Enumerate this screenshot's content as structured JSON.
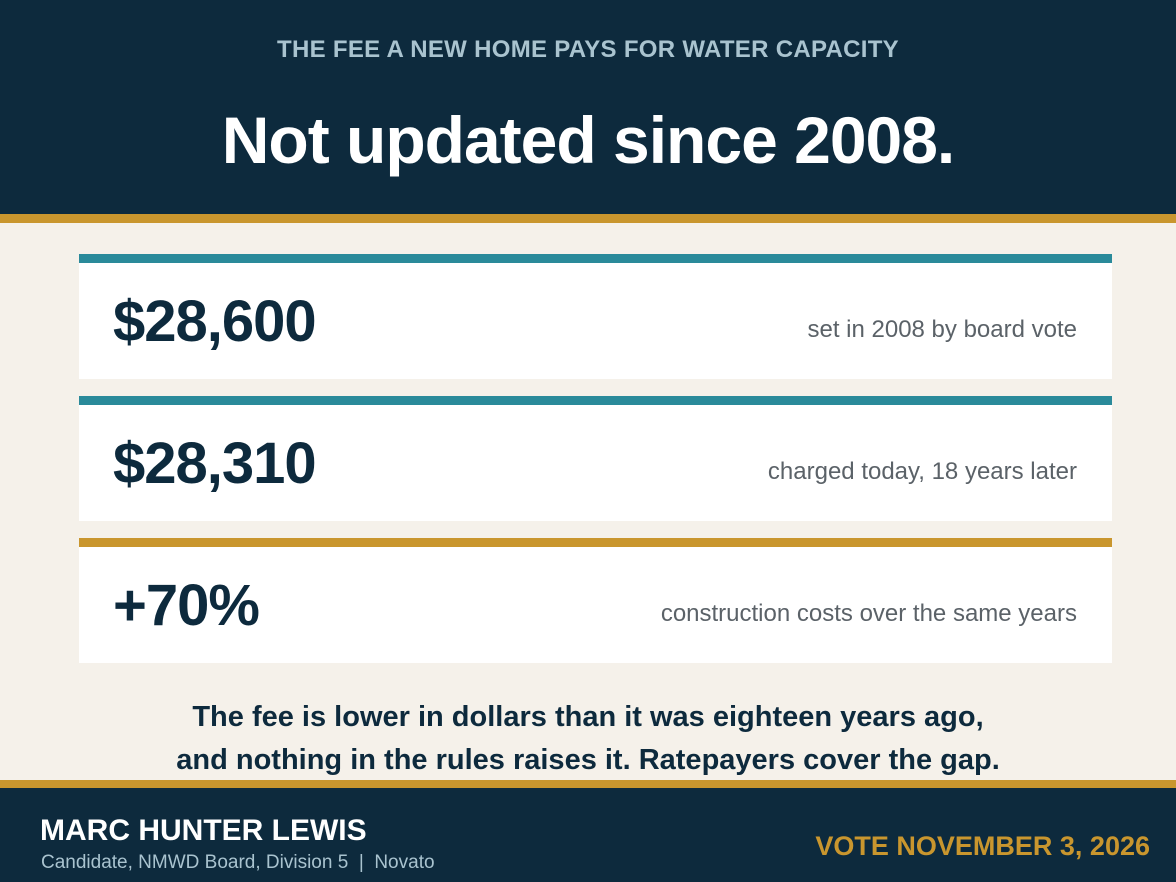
{
  "header": {
    "kicker": "THE FEE A NEW HOME PAYS FOR WATER CAPACITY",
    "headline": "Not updated since 2008."
  },
  "cards": [
    {
      "value": "$28,600",
      "description": "set in 2008 by board vote",
      "accent": "#2a8a9a"
    },
    {
      "value": "$28,310",
      "description": "charged today, 18 years later",
      "accent": "#2a8a9a"
    },
    {
      "value": "+70%",
      "description": "construction costs over the same years",
      "accent": "#c9962e"
    }
  ],
  "summary": {
    "line1": "The fee is lower in dollars than it was eighteen years ago,",
    "line2": "and nothing in the rules raises it. Ratepayers cover the gap."
  },
  "footer": {
    "name": "MARC HUNTER LEWIS",
    "role": "Candidate, NMWD Board, Division 5  |  Novato",
    "vote": "VOTE NOVEMBER 3, 2026"
  },
  "colors": {
    "navy": "#0d2a3d",
    "gold": "#c9962e",
    "teal": "#2a8a9a",
    "cream": "#f5f1ea"
  }
}
